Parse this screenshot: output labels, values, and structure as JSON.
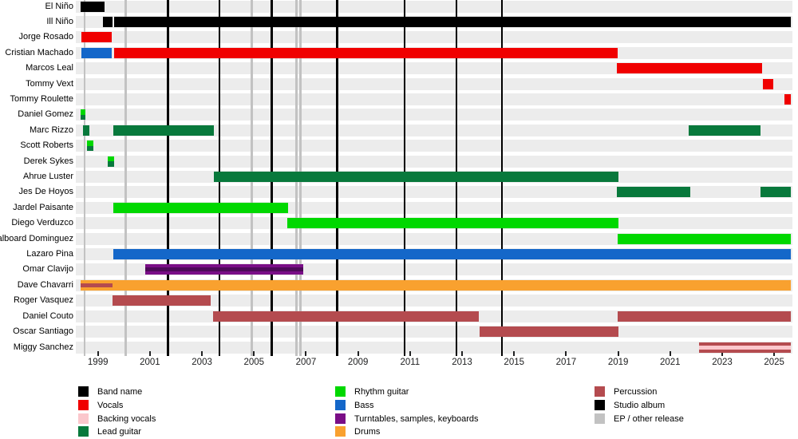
{
  "chart_data": {
    "type": "bar",
    "subtype": "band-member-gantt-timeline",
    "title": "",
    "xlim": [
      1998.15,
      2025.7
    ],
    "axis_years": [
      1999,
      2001,
      2003,
      2005,
      2007,
      2009,
      2011,
      2013,
      2015,
      2017,
      2019,
      2021,
      2023,
      2025
    ],
    "colors": {
      "band_name": "#000000",
      "vocals": "#f00000",
      "backing_vocals": "#fbc7cc",
      "lead_guitar": "#08793c",
      "rhythm_guitar": "#00d800",
      "bass": "#1467c9",
      "keys": "#7a0e87",
      "keys_dark": "#4d0a59",
      "drums": "#f9a12f",
      "percussion": "#b44b4f",
      "studio_album": "#000000",
      "ep": "#c2c2c2",
      "row_band": "#ececec"
    },
    "rows": [
      {
        "name": "El Niño",
        "bars": [
          {
            "role": "band_name",
            "start": 1998.33,
            "end": 1999.24
          }
        ]
      },
      {
        "name": "Ill Niño",
        "bars": [
          {
            "role": "band_name",
            "start": 1999.18,
            "end": 1999.55
          },
          {
            "role": "band_name",
            "start": 1999.61,
            "end": 2025.64
          }
        ]
      },
      {
        "name": "Jorge Rosado",
        "bars": [
          {
            "role": "vocals",
            "start": 1998.36,
            "end": 1999.52
          }
        ]
      },
      {
        "name": "Cristian Machado",
        "bars": [
          {
            "role": "bass",
            "start": 1998.36,
            "end": 1999.52
          },
          {
            "role": "vocals",
            "start": 1999.61,
            "end": 2018.98
          }
        ]
      },
      {
        "name": "Marcos Leal",
        "bars": [
          {
            "role": "vocals",
            "start": 2018.95,
            "end": 2024.54
          }
        ]
      },
      {
        "name": "Tommy Vext",
        "bars": [
          {
            "role": "vocals",
            "start": 2024.57,
            "end": 2024.97
          }
        ]
      },
      {
        "name": "Tommy Roulette",
        "bars": [
          {
            "role": "vocals",
            "start": 2025.38,
            "end": 2025.64
          }
        ]
      },
      {
        "name": "Daniel Gomez",
        "bars": [
          {
            "roles": [
              "rhythm_guitar",
              "lead_guitar"
            ],
            "start": 1998.33,
            "end": 1998.51
          }
        ]
      },
      {
        "name": "Marc Rizzo",
        "bars": [
          {
            "role": "lead_guitar",
            "start": 1998.42,
            "end": 1998.66
          },
          {
            "role": "lead_guitar",
            "start": 1999.58,
            "end": 2003.47
          },
          {
            "role": "lead_guitar",
            "start": 2021.7,
            "end": 2024.48
          }
        ]
      },
      {
        "name": "Scott Roberts",
        "bars": [
          {
            "roles": [
              "rhythm_guitar",
              "lead_guitar"
            ],
            "start": 1998.57,
            "end": 1998.82
          }
        ]
      },
      {
        "name": "Derek Sykes",
        "bars": [
          {
            "roles": [
              "rhythm_guitar",
              "lead_guitar"
            ],
            "start": 1999.37,
            "end": 1999.61
          }
        ]
      },
      {
        "name": "Ahrue Luster",
        "bars": [
          {
            "role": "lead_guitar",
            "start": 2003.46,
            "end": 2019.0
          }
        ]
      },
      {
        "name": "Jes De Hoyos",
        "bars": [
          {
            "role": "lead_guitar",
            "start": 2018.95,
            "end": 2021.76
          },
          {
            "role": "lead_guitar",
            "start": 2024.48,
            "end": 2025.64
          }
        ]
      },
      {
        "name": "Jardel Paisante",
        "bars": [
          {
            "role": "rhythm_guitar",
            "start": 1999.58,
            "end": 2006.32
          }
        ]
      },
      {
        "name": "Diego Verduzco",
        "bars": [
          {
            "role": "rhythm_guitar",
            "start": 2006.29,
            "end": 2019.0
          }
        ]
      },
      {
        "name": "dalboard Dominguez",
        "bars": [
          {
            "role": "rhythm_guitar",
            "start": 2018.98,
            "end": 2025.64
          }
        ]
      },
      {
        "name": "Lazaro Pina",
        "bars": [
          {
            "role": "bass",
            "start": 1999.58,
            "end": 2025.64
          }
        ]
      },
      {
        "name": "Omar Clavijo",
        "bars": [
          {
            "role": "keys",
            "start": 2000.81,
            "end": 2006.9,
            "inset": {
              "role": "keys_dark"
            }
          }
        ]
      },
      {
        "name": "Dave Chavarri",
        "bars": [
          {
            "role": "drums",
            "start": 1998.33,
            "end": 2025.64,
            "inset": {
              "role": "percussion",
              "start": 1998.33,
              "end": 1999.55
            }
          }
        ]
      },
      {
        "name": "Roger Vasquez",
        "bars": [
          {
            "role": "percussion",
            "start": 1999.57,
            "end": 2003.35
          }
        ]
      },
      {
        "name": "Daniel Couto",
        "bars": [
          {
            "role": "percussion",
            "start": 2003.44,
            "end": 2013.64
          },
          {
            "role": "percussion",
            "start": 2018.98,
            "end": 2025.64
          }
        ]
      },
      {
        "name": "Oscar Santiago",
        "bars": [
          {
            "role": "percussion",
            "start": 2013.66,
            "end": 2019.0
          }
        ]
      },
      {
        "name": "Miggy Sanchez",
        "bars": [
          {
            "role": "percussion",
            "start": 2022.12,
            "end": 2025.64,
            "inset": {
              "role": "backing_vocals"
            }
          }
        ]
      }
    ],
    "releases": {
      "studio_albums": [
        2001.7,
        2003.67,
        2005.68,
        2008.19,
        2010.79,
        2012.78,
        2014.53
      ],
      "ep_other": [
        1998.48,
        2000.07,
        2004.91,
        2006.63,
        2006.79
      ]
    },
    "legend": {
      "position": "bottom",
      "columns": [
        [
          {
            "role": "band_name",
            "label": "Band name"
          },
          {
            "role": "vocals",
            "label": "Vocals"
          },
          {
            "role": "backing_vocals",
            "label": "Backing vocals"
          },
          {
            "role": "lead_guitar",
            "label": "Lead guitar"
          }
        ],
        [
          {
            "role": "rhythm_guitar",
            "label": "Rhythm guitar"
          },
          {
            "role": "bass",
            "label": "Bass"
          },
          {
            "role": "keys",
            "label": "Turntables, samples, keyboards"
          },
          {
            "role": "drums",
            "label": "Drums"
          }
        ],
        [
          {
            "role": "percussion",
            "label": "Percussion"
          },
          {
            "role": "studio_album",
            "label": "Studio album"
          },
          {
            "role": "ep",
            "label": "EP / other release"
          }
        ]
      ]
    }
  }
}
